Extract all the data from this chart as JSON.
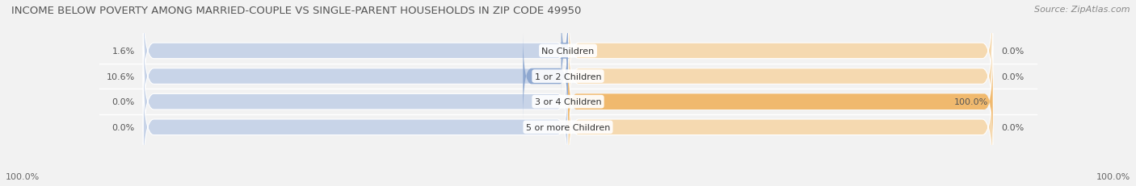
{
  "title": "INCOME BELOW POVERTY AMONG MARRIED-COUPLE VS SINGLE-PARENT HOUSEHOLDS IN ZIP CODE 49950",
  "source": "Source: ZipAtlas.com",
  "categories": [
    "No Children",
    "1 or 2 Children",
    "3 or 4 Children",
    "5 or more Children"
  ],
  "married_values": [
    1.6,
    10.6,
    0.0,
    0.0
  ],
  "single_values": [
    0.0,
    0.0,
    100.0,
    0.0
  ],
  "left_label": "100.0%",
  "right_label": "100.0%",
  "married_color": "#8fa8d0",
  "single_color": "#f0b96e",
  "bg_color": "#f2f2f2",
  "bar_bg_color_married": "#c8d4e8",
  "bar_bg_color_single": "#f5d9b0",
  "title_fontsize": 9.5,
  "source_fontsize": 8,
  "label_fontsize": 8,
  "category_fontsize": 8
}
